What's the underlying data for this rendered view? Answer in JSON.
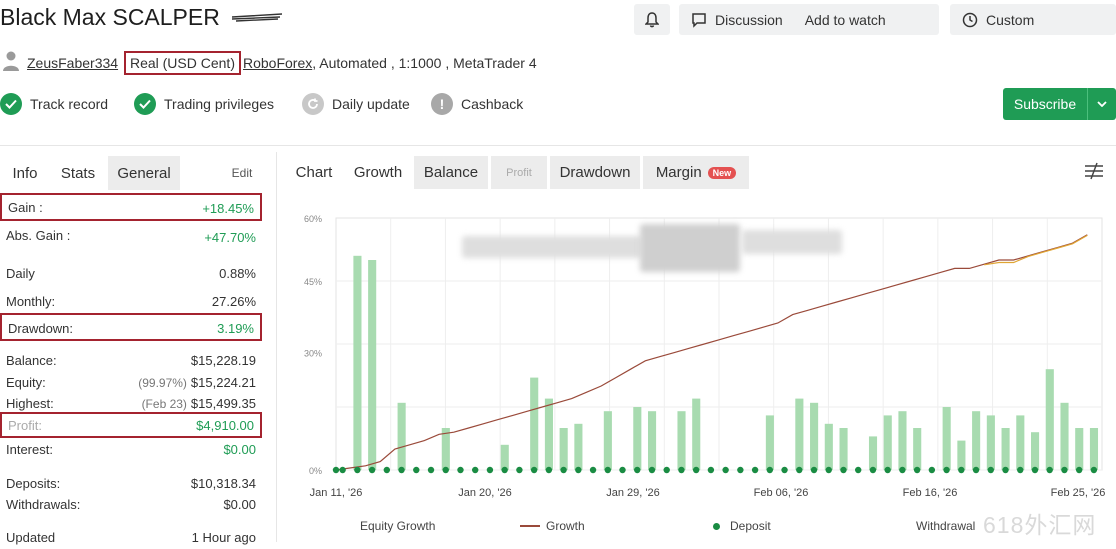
{
  "header": {
    "title": "Black Max SCALPER",
    "discuss_label": "Discussion",
    "watch_label": "Add to watch",
    "custom_label": "Custom"
  },
  "account": {
    "user": "ZeusFaber334",
    "type": "Real (USD Cent)",
    "broker": "RoboForex",
    "details": ", Automated , 1:1000 , MetaTrader 4"
  },
  "verifications": [
    {
      "label": "Track record",
      "icon": "check-icon",
      "state": "verified"
    },
    {
      "label": "Trading privileges",
      "icon": "check-icon",
      "state": "verified"
    },
    {
      "label": "Daily update",
      "icon": "refresh-icon",
      "state": "pending"
    },
    {
      "label": "Cashback",
      "icon": "alert-icon",
      "state": "pending"
    }
  ],
  "subscribe_label": "Subscribe",
  "left_tabs": {
    "info": "Info",
    "stats": "Stats",
    "general": "General",
    "extra": "Edit"
  },
  "stats": [
    {
      "key": "Gain :",
      "value": "+18.45%",
      "color": "#1f9c55",
      "highlight": true
    },
    {
      "key": "Abs. Gain :",
      "value": "+47.70%",
      "color": "#1f9c55",
      "highlight": false
    },
    {
      "key": "Daily",
      "value": "0.88%",
      "color": "#333333",
      "highlight": false
    },
    {
      "key": "Monthly:",
      "value": "27.26%",
      "color": "#333333",
      "highlight": false
    },
    {
      "key": "Drawdown:",
      "value": "3.19%",
      "color": "#1f9c55",
      "highlight": true
    },
    {
      "key": "Balance:",
      "value": "$15,228.19",
      "color": "#333333",
      "highlight": false
    },
    {
      "key": "Equity:",
      "sub": "(99.97%)",
      "value": "$15,224.21",
      "color": "#333333",
      "highlight": false
    },
    {
      "key": "Highest:",
      "sub": "(Feb 23)",
      "value": "$15,499.35",
      "color": "#333333",
      "highlight": false
    },
    {
      "key": "Profit:",
      "value": "$4,910.00",
      "color": "#1f9c55",
      "highlight": true
    },
    {
      "key": "Interest:",
      "value": "$0.00",
      "color": "#1f9c55",
      "highlight": false
    },
    {
      "key": "Deposits:",
      "value": "$10,318.34",
      "color": "#333333",
      "highlight": false
    },
    {
      "key": "Withdrawals:",
      "value": "$0.00",
      "color": "#333333",
      "highlight": false
    },
    {
      "key": "Updated",
      "value": "1 Hour ago",
      "color": "#333333",
      "highlight": false
    }
  ],
  "chart_tabs": [
    "Chart",
    "Growth",
    "Balance",
    "Profit",
    "Drawdown",
    "Margin"
  ],
  "chart_new_badge": "New",
  "chart_data": {
    "type": "bar",
    "y_ticks": [
      "60%",
      "45%",
      "30%",
      "0%"
    ],
    "x_ticks": [
      "Jan 11, '26",
      "Jan 20, '26",
      "Jan 29, '26",
      "Feb 06, '26",
      "Feb 16, '26",
      "Feb 25, '26"
    ],
    "series": [
      {
        "name": "Equity Growth",
        "type": "bar",
        "color": "#a8dbb0",
        "values": [
          0,
          51,
          50,
          0,
          16,
          0,
          0,
          10,
          0,
          0,
          0,
          6,
          0,
          22,
          17,
          10,
          11,
          0,
          14,
          0,
          15,
          14,
          0,
          14,
          17,
          0,
          0,
          0,
          0,
          13,
          0,
          17,
          16,
          11,
          10,
          0,
          8,
          13,
          14,
          10,
          0,
          15,
          7,
          14,
          13,
          10,
          13,
          9,
          24,
          16,
          10,
          10
        ]
      },
      {
        "name": "Growth",
        "type": "line",
        "color": "#9a4a3a",
        "values": [
          0,
          0.5,
          1,
          2,
          5,
          6,
          7,
          8.5,
          9,
          10,
          11,
          12,
          13,
          14,
          15,
          16,
          17,
          18.5,
          20,
          22,
          24,
          26,
          27,
          28,
          29,
          30,
          31,
          32,
          33,
          34,
          35,
          37,
          38,
          39,
          40,
          41,
          42,
          43,
          44,
          45,
          46,
          47,
          48,
          48,
          49,
          50,
          50,
          51,
          52,
          53,
          54,
          56
        ]
      },
      {
        "name": "Deposit",
        "type": "dot",
        "color": "#1a8c43"
      },
      {
        "name": "Withdrawal",
        "type": "dot",
        "color": "#d32f2f"
      }
    ]
  },
  "legend": {
    "equity": "Equity Growth",
    "growth": "Growth",
    "deposit": "Deposit",
    "withdrawal": "Withdrawal"
  },
  "watermark": "618外汇网"
}
